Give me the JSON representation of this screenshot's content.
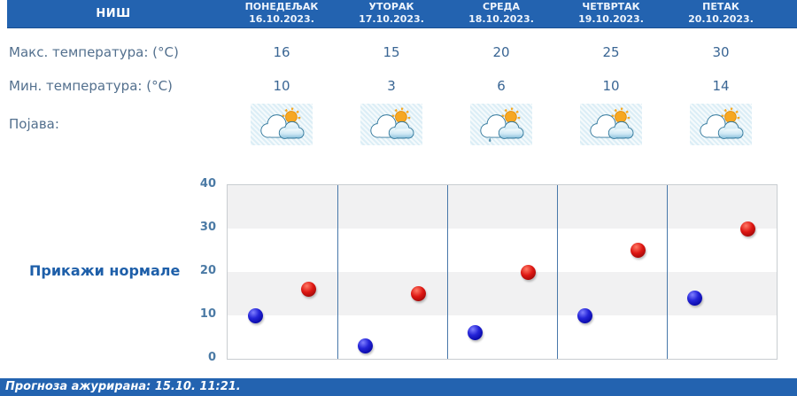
{
  "header": {
    "city": "НИШ",
    "days": [
      {
        "name": "ПОНЕДЕЉАК",
        "date": "16.10.2023."
      },
      {
        "name": "УТОРАК",
        "date": "17.10.2023."
      },
      {
        "name": "СРЕДА",
        "date": "18.10.2023."
      },
      {
        "name": "ЧЕТВРТАК",
        "date": "19.10.2023."
      },
      {
        "name": "ПЕТАК",
        "date": "20.10.2023."
      }
    ]
  },
  "rows": {
    "max_label": "Макс. температура: (°C)",
    "min_label": "Мин. температура: (°C)",
    "phenomenon_label": "Појава:"
  },
  "max_temps": [
    16,
    15,
    20,
    25,
    30
  ],
  "min_temps": [
    10,
    3,
    6,
    10,
    14
  ],
  "icons": [
    "partly-cloudy",
    "partly-cloudy",
    "partly-cloudy-light-rain",
    "partly-cloudy",
    "partly-cloudy"
  ],
  "controls": {
    "show_normals_label": "Прикажи нормале"
  },
  "footer": {
    "updated_text": "Прогноза ажурирана:  15.10. 11:21."
  },
  "colors": {
    "header_bar": "#2363b0",
    "link_blue": "#1e5fa9",
    "label_blue_gray": "#53708e",
    "value_blue": "#3a6694",
    "grid_line_blue": "#4878aa",
    "band_gray": "#f1f1f2",
    "min_dot_blue": "#1a1ad0",
    "max_dot_red": "#d41414"
  },
  "chart_data": {
    "type": "scatter",
    "categories": [
      "16.10.2023.",
      "17.10.2023.",
      "18.10.2023.",
      "19.10.2023.",
      "20.10.2023."
    ],
    "series": [
      {
        "name": "Мин. температура (°C)",
        "color": "#1a1ad0",
        "values": [
          10,
          3,
          6,
          10,
          14
        ]
      },
      {
        "name": "Макс. температура (°C)",
        "color": "#d41414",
        "values": [
          16,
          15,
          20,
          25,
          30
        ]
      }
    ],
    "ylabel": "",
    "xlabel": "",
    "ylim": [
      0,
      40
    ],
    "yticks": [
      0,
      10,
      20,
      30,
      40
    ],
    "grid": "horizontal-bands-and-day-separators",
    "legend": "none"
  }
}
